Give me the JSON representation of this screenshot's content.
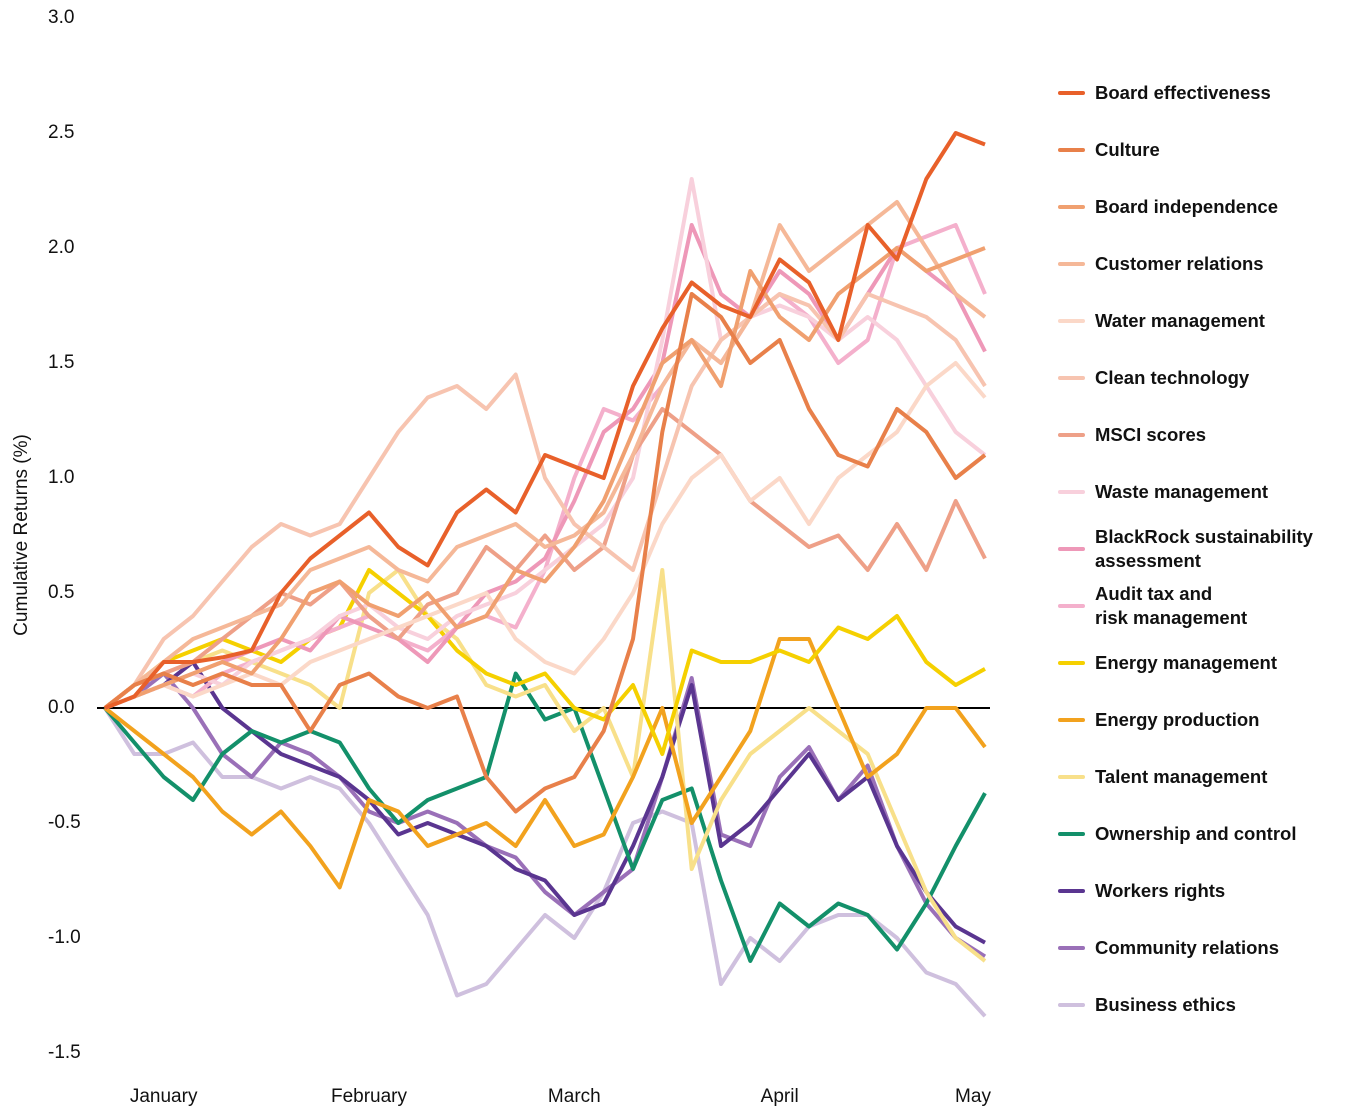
{
  "chart_data": {
    "type": "line",
    "y_label": "Cumulative Returns (%)",
    "categories": [
      null,
      null,
      "January",
      null,
      null,
      null,
      null,
      null,
      null,
      "February",
      null,
      null,
      null,
      null,
      null,
      null,
      "March",
      null,
      null,
      null,
      null,
      null,
      null,
      "April",
      null,
      null,
      null,
      null,
      null,
      null,
      "May"
    ],
    "ylim": [
      -1.5,
      3.0
    ],
    "yticks": [
      {
        "value": 3,
        "label": "3.0"
      },
      2.5,
      {
        "value": 2,
        "label": "2.0"
      },
      1.5,
      {
        "value": 1,
        "label": "1.0"
      },
      0.5,
      {
        "value": 0,
        "label": "0.0"
      },
      -0.5,
      {
        "value": -1,
        "label": "-1.0"
      },
      -1.5
    ],
    "series": [
      {
        "name": "Board effectiveness",
        "color": "#e8602a",
        "values": [
          0,
          0.05,
          0.2,
          0.2,
          0.22,
          0.25,
          0.5,
          0.65,
          0.75,
          0.85,
          0.7,
          0.62,
          0.85,
          0.95,
          0.85,
          1.1,
          1.05,
          1.0,
          1.4,
          1.65,
          1.85,
          1.75,
          1.7,
          1.95,
          1.85,
          1.6,
          2.1,
          1.95,
          2.3,
          2.5,
          2.45
        ]
      },
      {
        "name": "Culture",
        "color": "#e8804a",
        "values": [
          0,
          0.1,
          0.15,
          0.1,
          0.15,
          0.1,
          0.1,
          -0.1,
          0.1,
          0.15,
          0.05,
          0.0,
          0.05,
          -0.3,
          -0.45,
          -0.35,
          -0.3,
          -0.1,
          0.3,
          1.2,
          1.8,
          1.7,
          1.5,
          1.6,
          1.3,
          1.1,
          1.05,
          1.3,
          1.2,
          1.0,
          1.1
        ]
      },
      {
        "name": "Board independence",
        "color": "#f0a070",
        "values": [
          0,
          0.05,
          0.1,
          0.15,
          0.2,
          0.15,
          0.3,
          0.5,
          0.55,
          0.45,
          0.4,
          0.5,
          0.35,
          0.4,
          0.6,
          0.55,
          0.7,
          0.9,
          1.2,
          1.5,
          1.6,
          1.4,
          1.9,
          1.7,
          1.6,
          1.8,
          1.9,
          2.0,
          1.9,
          1.95,
          2.0
        ]
      },
      {
        "name": "Customer relations",
        "color": "#f5b898",
        "values": [
          0,
          0.1,
          0.2,
          0.3,
          0.35,
          0.4,
          0.45,
          0.6,
          0.65,
          0.7,
          0.6,
          0.55,
          0.7,
          0.75,
          0.8,
          0.7,
          0.75,
          0.85,
          1.1,
          1.4,
          1.6,
          1.5,
          1.7,
          2.1,
          1.9,
          2.0,
          2.1,
          2.2,
          2.0,
          1.8,
          1.7
        ]
      },
      {
        "name": "Water management",
        "color": "#fbd8c8",
        "values": [
          0,
          0.05,
          0.1,
          0.05,
          0.1,
          0.15,
          0.1,
          0.2,
          0.25,
          0.3,
          0.35,
          0.4,
          0.45,
          0.5,
          0.3,
          0.2,
          0.15,
          0.3,
          0.5,
          0.8,
          1.0,
          1.1,
          0.9,
          1.0,
          0.8,
          1.0,
          1.1,
          1.2,
          1.4,
          1.5,
          1.35
        ]
      },
      {
        "name": "Clean technology",
        "color": "#f7c4b0",
        "values": [
          0,
          0.1,
          0.3,
          0.4,
          0.55,
          0.7,
          0.8,
          0.75,
          0.8,
          1.0,
          1.2,
          1.35,
          1.4,
          1.3,
          1.45,
          1.0,
          0.8,
          0.7,
          0.6,
          1.0,
          1.4,
          1.6,
          1.7,
          1.8,
          1.75,
          1.6,
          1.8,
          1.75,
          1.7,
          1.6,
          1.4
        ]
      },
      {
        "name": "MSCI scores",
        "color": "#eea088",
        "values": [
          0,
          0.1,
          0.15,
          0.2,
          0.3,
          0.4,
          0.5,
          0.45,
          0.55,
          0.4,
          0.3,
          0.45,
          0.5,
          0.7,
          0.6,
          0.75,
          0.6,
          0.7,
          1.1,
          1.3,
          1.2,
          1.1,
          0.9,
          0.8,
          0.7,
          0.75,
          0.6,
          0.8,
          0.6,
          0.9,
          0.65
        ]
      },
      {
        "name": "Waste management",
        "color": "#f8d0dc",
        "values": [
          0,
          0.05,
          0.1,
          0.15,
          0.1,
          0.2,
          0.25,
          0.3,
          0.4,
          0.45,
          0.35,
          0.3,
          0.4,
          0.45,
          0.5,
          0.6,
          0.7,
          0.8,
          1.0,
          1.6,
          2.3,
          1.6,
          1.7,
          1.75,
          1.7,
          1.6,
          1.7,
          1.6,
          1.4,
          1.2,
          1.1
        ]
      },
      {
        "name": "BlackRock sustainability\nassessment",
        "color": "#ee98b8",
        "values": [
          0,
          0.05,
          0.1,
          0.15,
          0.2,
          0.25,
          0.3,
          0.25,
          0.4,
          0.35,
          0.3,
          0.2,
          0.35,
          0.5,
          0.55,
          0.65,
          0.9,
          1.2,
          1.3,
          1.5,
          2.1,
          1.8,
          1.7,
          1.9,
          1.8,
          1.6,
          1.8,
          2.0,
          1.9,
          1.8,
          1.55
        ]
      },
      {
        "name": "Audit tax and\nrisk management",
        "color": "#f4b0cc",
        "values": [
          0,
          0.05,
          0.1,
          0.05,
          0.15,
          0.2,
          0.25,
          0.3,
          0.35,
          0.4,
          0.3,
          0.25,
          0.35,
          0.4,
          0.35,
          0.6,
          1.0,
          1.3,
          1.25,
          1.4,
          1.6,
          1.5,
          1.7,
          1.8,
          1.7,
          1.5,
          1.6,
          2.0,
          2.05,
          2.1,
          1.8
        ]
      },
      {
        "name": "Energy management",
        "color": "#f5d000",
        "values": [
          0,
          0.1,
          0.2,
          0.25,
          0.3,
          0.25,
          0.2,
          0.3,
          0.35,
          0.6,
          0.5,
          0.4,
          0.25,
          0.15,
          0.1,
          0.15,
          0.0,
          -0.05,
          0.1,
          -0.2,
          0.25,
          0.2,
          0.2,
          0.25,
          0.2,
          0.35,
          0.3,
          0.4,
          0.2,
          0.1,
          0.17
        ]
      },
      {
        "name": "Energy production",
        "color": "#f2a21e",
        "values": [
          0,
          -0.1,
          -0.2,
          -0.3,
          -0.45,
          -0.55,
          -0.45,
          -0.6,
          -0.78,
          -0.4,
          -0.45,
          -0.6,
          -0.55,
          -0.5,
          -0.6,
          -0.4,
          -0.6,
          -0.55,
          -0.3,
          0.0,
          -0.5,
          -0.3,
          -0.1,
          0.3,
          0.3,
          0.0,
          -0.3,
          -0.2,
          0.0,
          0.0,
          -0.17
        ]
      },
      {
        "name": "Talent management",
        "color": "#f8e08a",
        "values": [
          0,
          0.1,
          0.15,
          0.2,
          0.25,
          0.2,
          0.15,
          0.1,
          0.0,
          0.5,
          0.6,
          0.4,
          0.3,
          0.1,
          0.05,
          0.1,
          -0.1,
          0.0,
          -0.3,
          0.6,
          -0.7,
          -0.4,
          -0.2,
          -0.1,
          0.0,
          -0.1,
          -0.2,
          -0.5,
          -0.8,
          -1.0,
          -1.1
        ]
      },
      {
        "name": "Ownership and control",
        "color": "#13906a",
        "values": [
          0,
          -0.15,
          -0.3,
          -0.4,
          -0.2,
          -0.1,
          -0.15,
          -0.1,
          -0.15,
          -0.35,
          -0.5,
          -0.4,
          -0.35,
          -0.3,
          0.15,
          -0.05,
          0.0,
          -0.35,
          -0.7,
          -0.4,
          -0.35,
          -0.75,
          -1.1,
          -0.85,
          -0.95,
          -0.85,
          -0.9,
          -1.05,
          -0.85,
          -0.6,
          -0.37
        ]
      },
      {
        "name": "Workers rights",
        "color": "#5a3590",
        "values": [
          0,
          0.05,
          0.1,
          0.2,
          0.0,
          -0.1,
          -0.2,
          -0.25,
          -0.3,
          -0.4,
          -0.55,
          -0.5,
          -0.55,
          -0.6,
          -0.7,
          -0.75,
          -0.9,
          -0.85,
          -0.6,
          -0.3,
          0.1,
          -0.6,
          -0.5,
          -0.35,
          -0.2,
          -0.4,
          -0.3,
          -0.6,
          -0.8,
          -0.95,
          -1.02
        ]
      },
      {
        "name": "Community relations",
        "color": "#9a70b8",
        "values": [
          0,
          0.05,
          0.15,
          0.0,
          -0.2,
          -0.3,
          -0.15,
          -0.2,
          -0.3,
          -0.45,
          -0.5,
          -0.45,
          -0.5,
          -0.6,
          -0.65,
          -0.8,
          -0.9,
          -0.8,
          -0.7,
          -0.3,
          0.13,
          -0.55,
          -0.6,
          -0.3,
          -0.17,
          -0.4,
          -0.25,
          -0.6,
          -0.85,
          -1.0,
          -1.08
        ]
      },
      {
        "name": "Business ethics",
        "color": "#cfc0de",
        "values": [
          0,
          -0.2,
          -0.2,
          -0.15,
          -0.3,
          -0.3,
          -0.35,
          -0.3,
          -0.35,
          -0.5,
          -0.7,
          -0.9,
          -1.25,
          -1.2,
          -1.05,
          -0.9,
          -1.0,
          -0.8,
          -0.5,
          -0.45,
          -0.5,
          -1.2,
          -1.0,
          -1.1,
          -0.95,
          -0.9,
          -0.9,
          -1.0,
          -1.15,
          -1.2,
          -1.34
        ]
      }
    ]
  }
}
